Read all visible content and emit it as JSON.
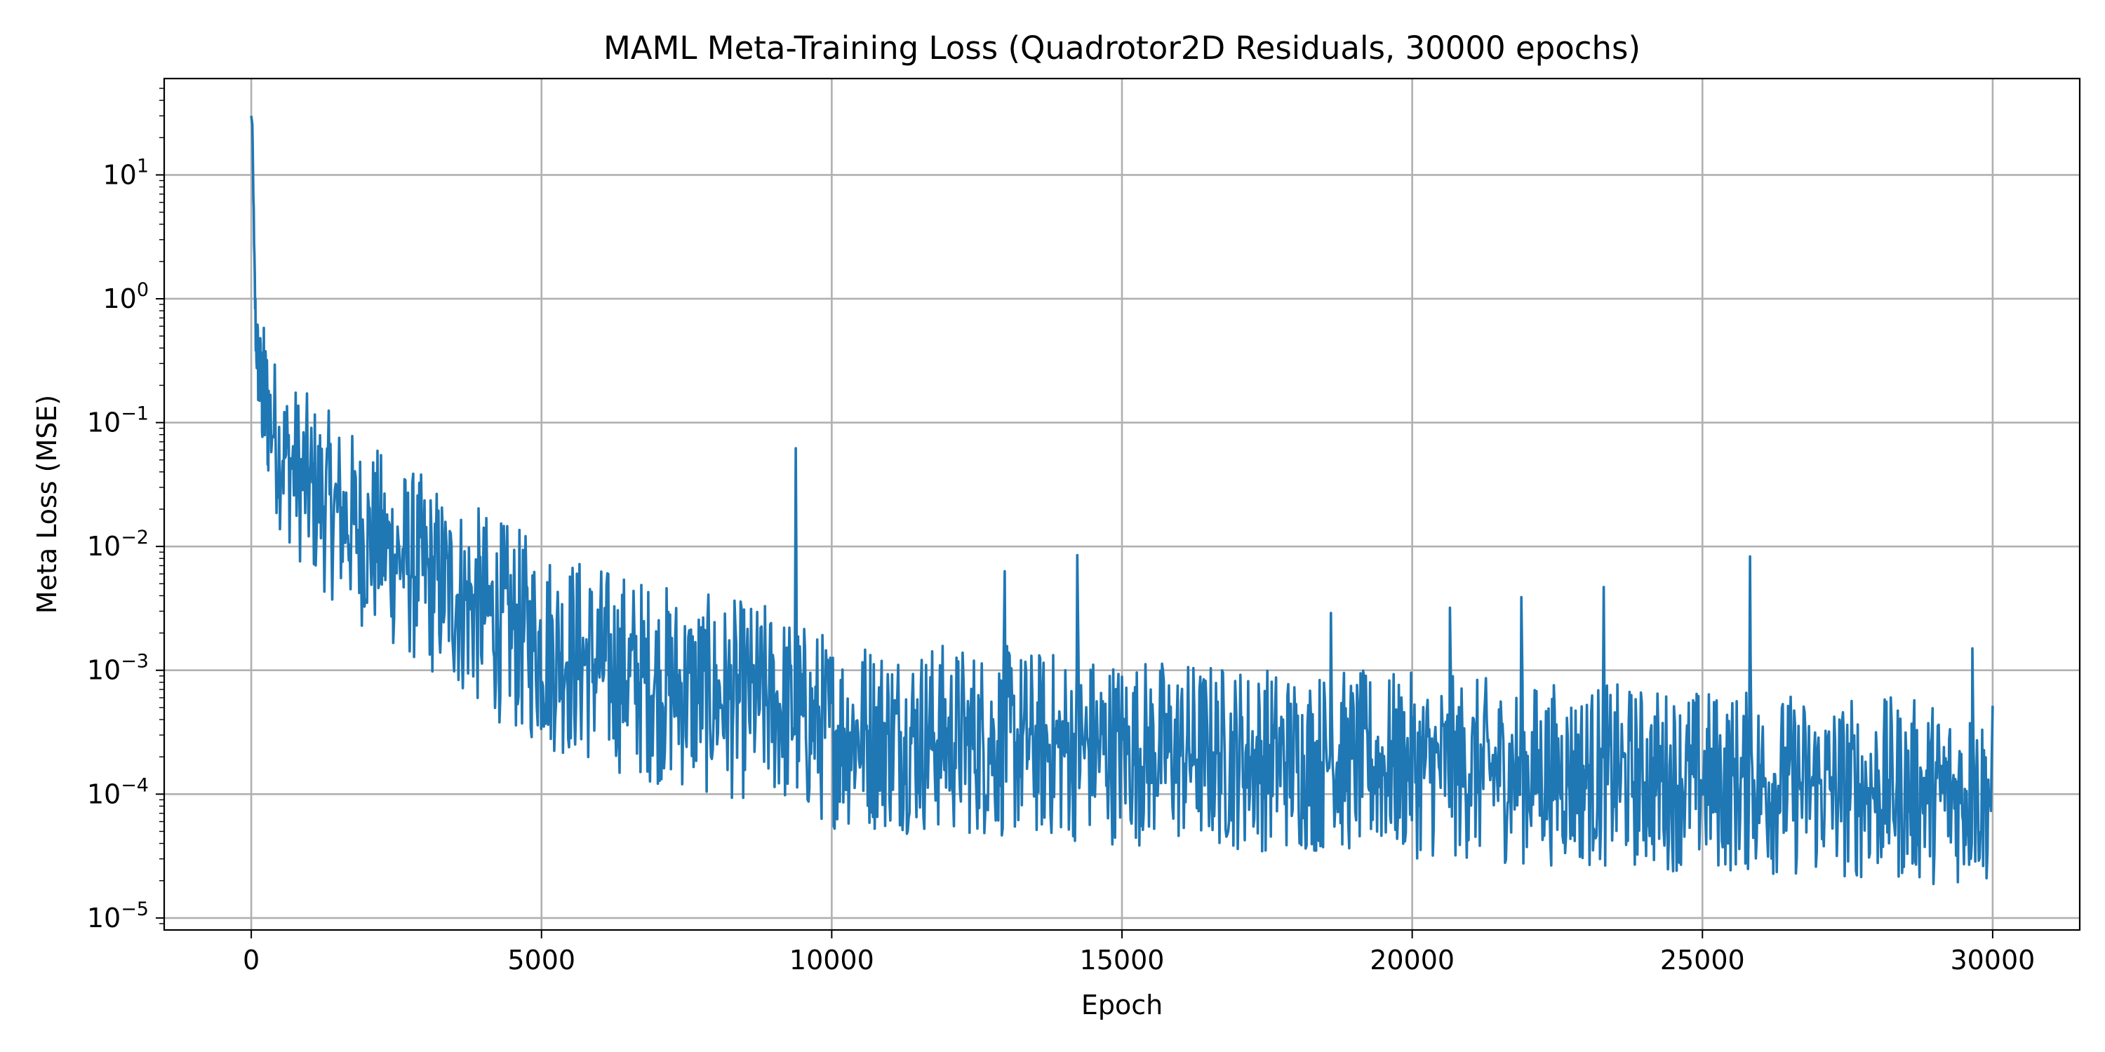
{
  "chart_data": {
    "type": "line",
    "title": "MAML Meta-Training Loss (Quadrotor2D Residuals, 30000 epochs)",
    "xlabel": "Epoch",
    "ylabel": "Meta Loss (MSE)",
    "xlim": [
      -1500,
      31500
    ],
    "ylim": [
      8e-06,
      60
    ],
    "yscale": "log",
    "grid": true,
    "x_ticks": [
      {
        "value": 0,
        "label": "0"
      },
      {
        "value": 5000,
        "label": "5000"
      },
      {
        "value": 10000,
        "label": "10000"
      },
      {
        "value": 15000,
        "label": "15000"
      },
      {
        "value": 20000,
        "label": "20000"
      },
      {
        "value": 25000,
        "label": "25000"
      },
      {
        "value": 30000,
        "label": "30000"
      }
    ],
    "y_ticks": [
      {
        "value": 10,
        "base": "10",
        "exp": "1"
      },
      {
        "value": 1,
        "base": "10",
        "exp": "0"
      },
      {
        "value": 0.1,
        "base": "10",
        "exp": "−1"
      },
      {
        "value": 0.01,
        "base": "10",
        "exp": "−2"
      },
      {
        "value": 0.001,
        "base": "10",
        "exp": "−3"
      },
      {
        "value": 0.0001,
        "base": "10",
        "exp": "−4"
      },
      {
        "value": 1e-05,
        "base": "10",
        "exp": "−5"
      }
    ],
    "series": [
      {
        "color": "#1f77b4",
        "trend": {
          "x": [
            0,
            20,
            50,
            80,
            150,
            300,
            500,
            1000,
            2000,
            3000,
            4000,
            5000,
            6000,
            7000,
            8000,
            9000,
            9500,
            10000,
            12000,
            15000,
            18000,
            20000,
            22000,
            25000,
            28000,
            30000
          ],
          "y": [
            30,
            25,
            2.0,
            0.5,
            0.2,
            0.12,
            0.06,
            0.03,
            0.012,
            0.006,
            0.003,
            0.0016,
            0.0011,
            0.0008,
            0.0006,
            0.00055,
            0.0004,
            0.00033,
            0.00028,
            0.00023,
            0.00019,
            0.00017,
            0.00015,
            0.00013,
            0.00011,
            0.0001
          ]
        },
        "spread": {
          "x": [
            0,
            200,
            1000,
            5000,
            10000,
            20000,
            30000
          ],
          "log10_halfwidth": [
            0.1,
            0.6,
            0.75,
            0.85,
            0.8,
            0.75,
            0.75
          ]
        },
        "spikes": [
          {
            "x": 9380,
            "y": 0.062
          },
          {
            "x": 12980,
            "y": 0.0063
          },
          {
            "x": 14230,
            "y": 0.0085
          },
          {
            "x": 18600,
            "y": 0.0029
          },
          {
            "x": 20650,
            "y": 0.0032
          },
          {
            "x": 21880,
            "y": 0.0039
          },
          {
            "x": 23300,
            "y": 0.0047
          },
          {
            "x": 25820,
            "y": 0.0083
          },
          {
            "x": 29650,
            "y": 0.0015
          }
        ]
      }
    ]
  }
}
